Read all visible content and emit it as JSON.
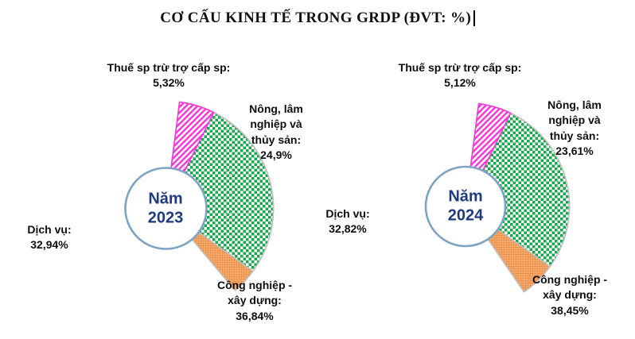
{
  "title": "CƠ CẤU KINH TẾ TRONG GRDP (ĐVT: %)",
  "styles": {
    "center_text_color": "#1f3a7e",
    "hole_ring_color": "#7fa3c2",
    "slice_divider_color": "#bfbfbf",
    "label_color": "#0d0d0d"
  },
  "chart_data": [
    {
      "type": "pie",
      "donut": true,
      "center_label": "Năm 2023",
      "rotation_deg": 7.3,
      "legend_position": "none",
      "slices": [
        {
          "name": "nong-lam-thuy-san",
          "label": "Nông, lâm nghiệp và thủy sản:",
          "value": 24.9,
          "value_text": "24,9%",
          "color": "#FFD44F",
          "pattern": "solid",
          "stroke": "#E0B94E"
        },
        {
          "name": "cong-nghiep-xay-dung",
          "label": "Công nghiệp - xây dựng:",
          "value": 36.84,
          "value_text": "36,84%",
          "color": "#F5A765",
          "pattern": "dots",
          "stroke": "#BFBFBF"
        },
        {
          "name": "dich-vu",
          "label": "Dịch vụ:",
          "value": 32.94,
          "value_text": "32,94%",
          "color": "#19A74D",
          "pattern": "checker",
          "stroke": "#BFBFBF"
        },
        {
          "name": "thue-sp",
          "label": "Thuế sp trừ trợ cấp sp:",
          "value": 5.32,
          "value_text": "5,32%",
          "color": "#F53AD8",
          "pattern": "stripes",
          "stroke": "#F53AD8"
        }
      ]
    },
    {
      "type": "pie",
      "donut": true,
      "center_label": "Năm 2024",
      "rotation_deg": 7.3,
      "legend_position": "none",
      "slices": [
        {
          "name": "nong-lam-thuy-san",
          "label": "Nông, lâm nghiệp và thủy sản:",
          "value": 23.61,
          "value_text": "23,61%",
          "color": "#FFD44F",
          "pattern": "solid",
          "stroke": "#E0B94E"
        },
        {
          "name": "cong-nghiep-xay-dung",
          "label": "Công nghiệp - xây dựng:",
          "value": 38.45,
          "value_text": "38,45%",
          "color": "#F5A765",
          "pattern": "dots",
          "stroke": "#BFBFBF"
        },
        {
          "name": "dich-vu",
          "label": "Dịch vụ:",
          "value": 32.82,
          "value_text": "32,82%",
          "color": "#19A74D",
          "pattern": "checker",
          "stroke": "#BFBFBF"
        },
        {
          "name": "thue-sp",
          "label": "Thuế sp trừ trợ cấp sp:",
          "value": 5.12,
          "value_text": "5,12%",
          "color": "#F53AD8",
          "pattern": "stripes",
          "stroke": "#F53AD8"
        }
      ]
    }
  ]
}
